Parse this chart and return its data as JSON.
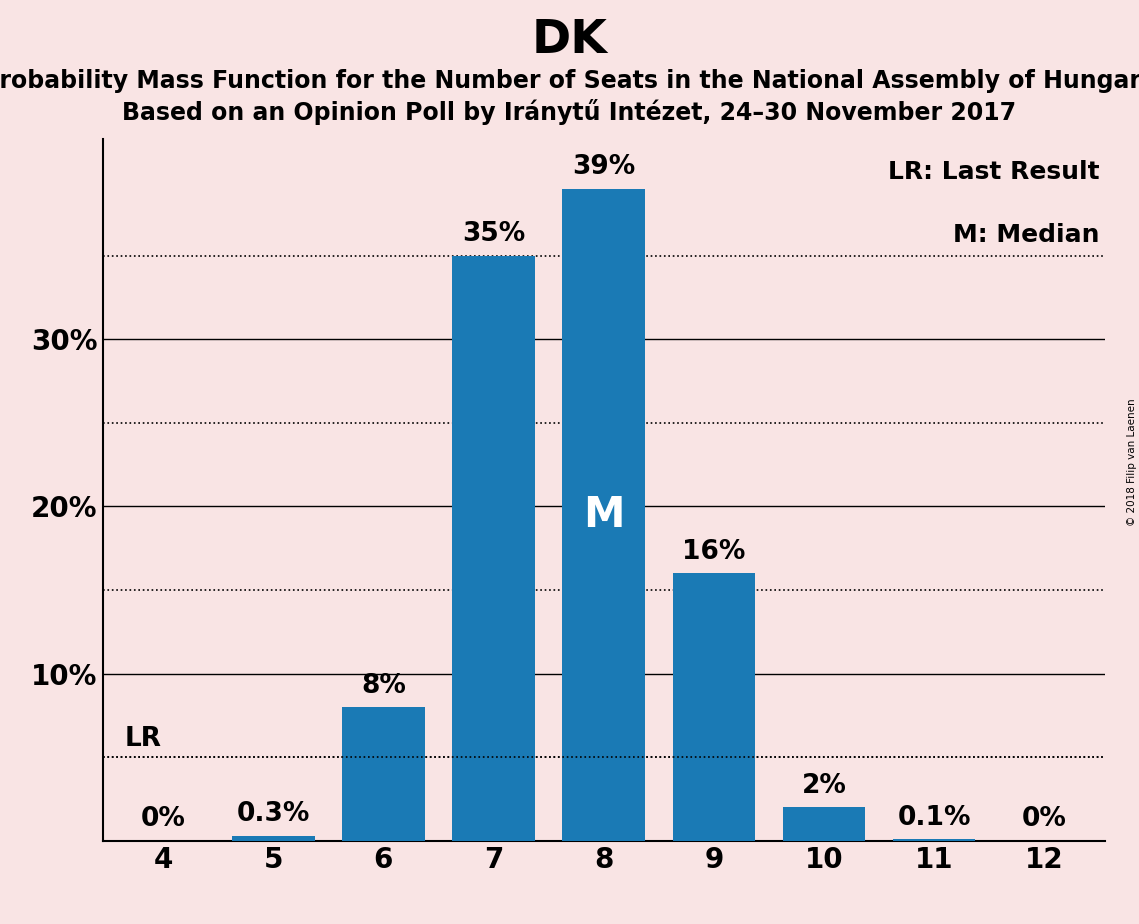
{
  "title": "DK",
  "subtitle1": "Probability Mass Function for the Number of Seats in the National Assembly of Hungary",
  "subtitle2": "Based on an Opinion Poll by Iránytű Intézet, 24–30 November 2017",
  "watermark": "© 2018 Filip van Laenen",
  "categories": [
    4,
    5,
    6,
    7,
    8,
    9,
    10,
    11,
    12
  ],
  "values": [
    0.0,
    0.3,
    8.0,
    35.0,
    39.0,
    16.0,
    2.0,
    0.1,
    0.0
  ],
  "bar_color": "#1a7ab5",
  "background_color": "#f9e4e4",
  "bar_labels": [
    "0%",
    "0.3%",
    "8%",
    "35%",
    "39%",
    "16%",
    "2%",
    "0.1%",
    "0%"
  ],
  "ylim": [
    0,
    42
  ],
  "lr_value": 5.0,
  "lr_label": "LR",
  "median_seat": 8,
  "median_label": "M",
  "legend_lr": "LR: Last Result",
  "legend_m": "M: Median",
  "solid_grid_levels": [
    10,
    20,
    30
  ],
  "dotted_grid_levels": [
    5,
    15,
    25,
    35
  ],
  "bar_label_fontsize": 19,
  "title_fontsize": 34,
  "subtitle_fontsize": 17,
  "axis_tick_fontsize": 20,
  "legend_fontsize": 18,
  "lr_label_fontsize": 19,
  "median_fontsize": 30,
  "major_yticks": [
    10,
    20,
    30
  ],
  "major_ytick_labels": [
    "10%",
    "20%",
    "30%"
  ]
}
